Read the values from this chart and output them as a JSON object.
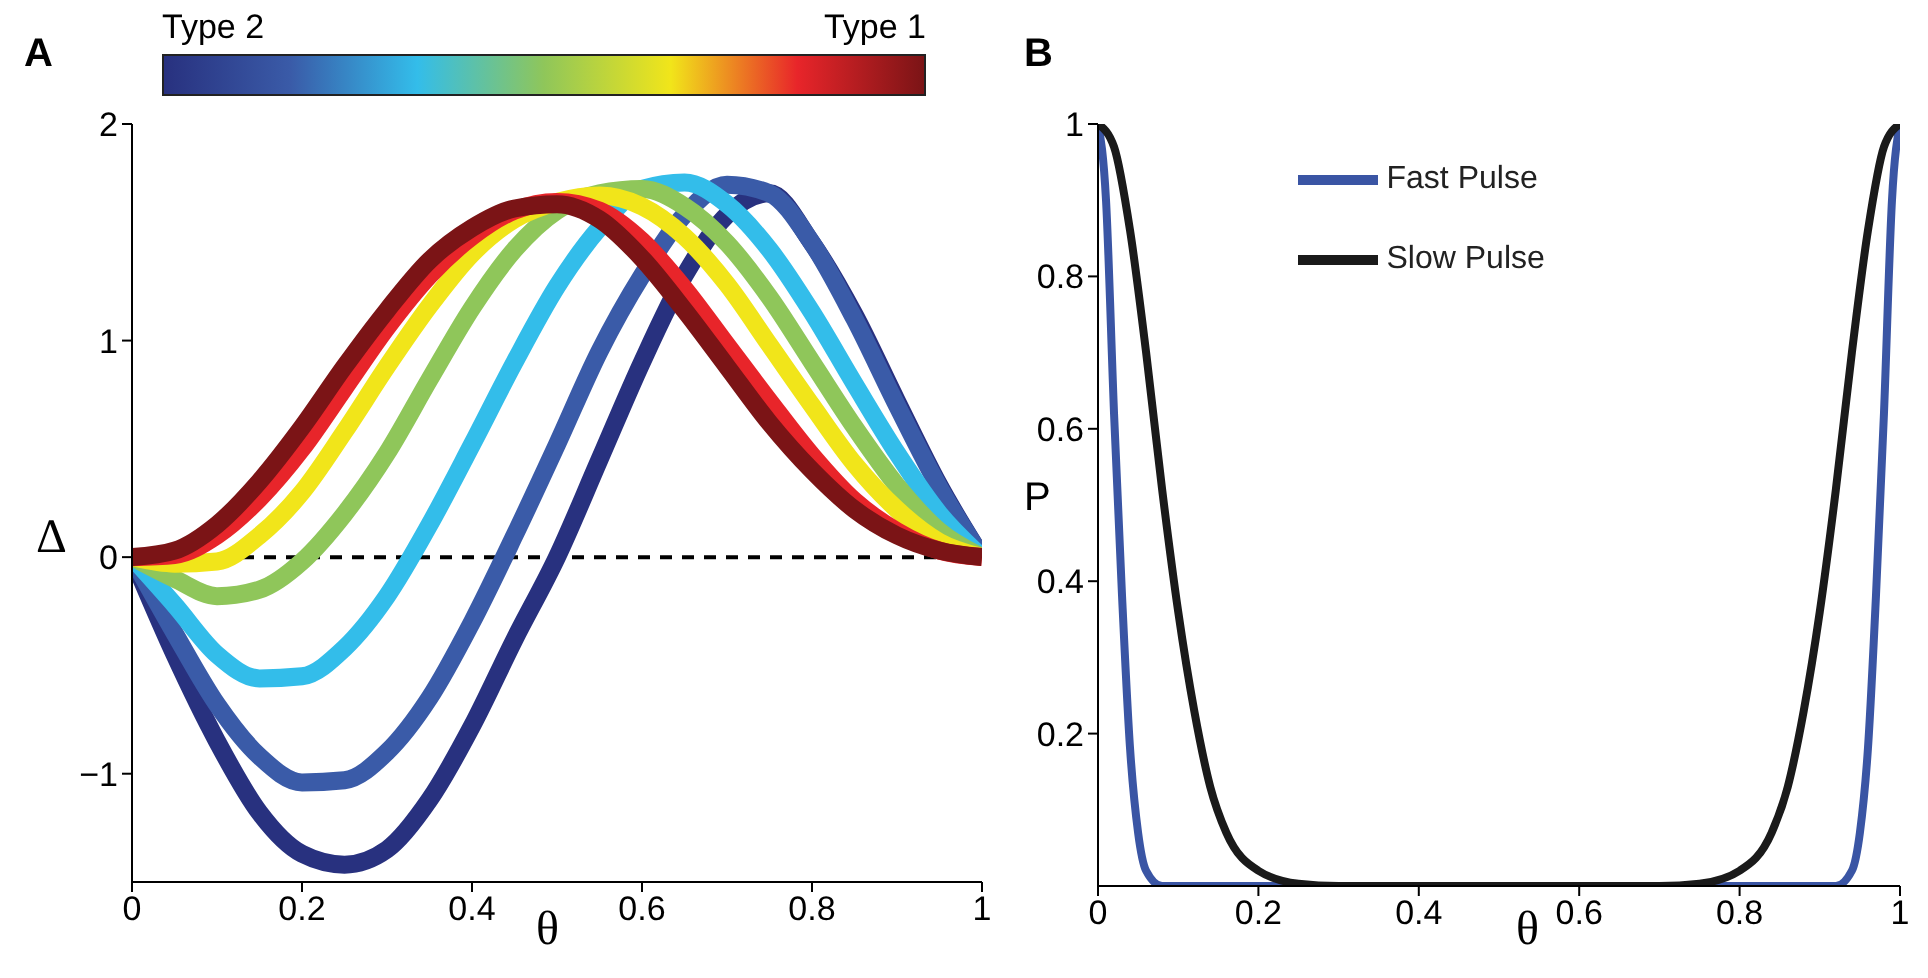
{
  "chart_data": [
    {
      "type": "line",
      "title": "A",
      "xlabel": "θ",
      "ylabel": "Δ",
      "annotations": [
        "Type 2",
        "Type 1"
      ],
      "x": [
        0,
        0.05,
        0.1,
        0.15,
        0.2,
        0.25,
        0.3,
        0.35,
        0.4,
        0.45,
        0.5,
        0.55,
        0.6,
        0.65,
        0.7,
        0.75,
        0.8,
        0.85,
        0.9,
        0.95,
        1
      ],
      "series": [
        {
          "color": "#28317f",
          "values": [
            0,
            -0.45,
            -0.85,
            -1.18,
            -1.37,
            -1.42,
            -1.35,
            -1.12,
            -0.78,
            -0.38,
            0,
            0.45,
            0.9,
            1.3,
            1.58,
            1.68,
            1.45,
            1.12,
            0.72,
            0.33,
            0
          ]
        },
        {
          "color": "#3a5ba8",
          "values": [
            0,
            -0.35,
            -0.68,
            -0.92,
            -1.04,
            -1.03,
            -0.9,
            -0.65,
            -0.3,
            0.1,
            0.52,
            0.95,
            1.3,
            1.58,
            1.72,
            1.68,
            1.45,
            1.1,
            0.7,
            0.32,
            0
          ]
        },
        {
          "color": "#33bdea",
          "values": [
            0,
            -0.22,
            -0.45,
            -0.56,
            -0.55,
            -0.42,
            -0.18,
            0.15,
            0.52,
            0.9,
            1.25,
            1.52,
            1.7,
            1.73,
            1.63,
            1.42,
            1.13,
            0.8,
            0.48,
            0.2,
            0
          ]
        },
        {
          "color": "#8fc65a",
          "values": [
            0,
            -0.1,
            -0.18,
            -0.15,
            -0.02,
            0.2,
            0.48,
            0.82,
            1.15,
            1.42,
            1.6,
            1.68,
            1.7,
            1.62,
            1.45,
            1.2,
            0.9,
            0.6,
            0.33,
            0.12,
            0
          ]
        },
        {
          "color": "#f1e51a",
          "values": [
            0,
            -0.03,
            -0.02,
            0.1,
            0.3,
            0.58,
            0.88,
            1.16,
            1.4,
            1.56,
            1.64,
            1.67,
            1.62,
            1.48,
            1.26,
            0.98,
            0.7,
            0.43,
            0.22,
            0.07,
            0
          ]
        },
        {
          "color": "#e8252a",
          "values": [
            0,
            0.01,
            0.1,
            0.27,
            0.5,
            0.78,
            1.06,
            1.3,
            1.48,
            1.6,
            1.64,
            1.6,
            1.46,
            1.24,
            0.98,
            0.72,
            0.47,
            0.26,
            0.12,
            0.03,
            0
          ]
        },
        {
          "color": "#7b1416",
          "values": [
            0,
            0.03,
            0.15,
            0.35,
            0.6,
            0.88,
            1.14,
            1.37,
            1.52,
            1.61,
            1.63,
            1.56,
            1.38,
            1.14,
            0.88,
            0.62,
            0.4,
            0.22,
            0.1,
            0.03,
            0
          ]
        }
      ],
      "xlim": [
        0,
        1
      ],
      "xticks": [
        0,
        0.2,
        0.4,
        0.6,
        0.8,
        1
      ],
      "ylim": [
        -1.5,
        2
      ],
      "yticks": [
        {
          "value": -1,
          "label": "−1"
        },
        0,
        1,
        2
      ],
      "ref_lines": [
        {
          "axis": "y",
          "value": 0,
          "color": "#000000",
          "line_style": "dashed"
        }
      ]
    },
    {
      "type": "line",
      "title": "B",
      "xlabel": "θ",
      "ylabel": "P",
      "legend": "top",
      "series": [
        {
          "name": "Fast Pulse",
          "color": "#3a55a4",
          "x": [
            0,
            0.01,
            0.02,
            0.03,
            0.04,
            0.05,
            0.06,
            0.08,
            0.1,
            0.5,
            0.9,
            0.92,
            0.94,
            0.95,
            0.96,
            0.97,
            0.98,
            0.99,
            1
          ],
          "values": [
            1,
            0.9,
            0.62,
            0.38,
            0.18,
            0.07,
            0.02,
            0,
            0,
            0,
            0,
            0,
            0.02,
            0.07,
            0.18,
            0.38,
            0.62,
            0.9,
            1
          ]
        },
        {
          "name": "Slow Pulse",
          "color": "#1a1a1a",
          "x": [
            0,
            0.02,
            0.04,
            0.06,
            0.08,
            0.1,
            0.12,
            0.14,
            0.16,
            0.2,
            0.25,
            0.3,
            0.7,
            0.75,
            0.8,
            0.84,
            0.86,
            0.88,
            0.9,
            0.92,
            0.94,
            0.96,
            0.98,
            1
          ],
          "values": [
            1,
            0.97,
            0.86,
            0.7,
            0.52,
            0.36,
            0.23,
            0.13,
            0.07,
            0.02,
            0.003,
            0,
            0,
            0.003,
            0.02,
            0.07,
            0.13,
            0.23,
            0.36,
            0.52,
            0.7,
            0.86,
            0.97,
            1
          ]
        }
      ],
      "xlim": [
        0,
        1
      ],
      "xticks": [
        0,
        0.2,
        0.4,
        0.6,
        0.8,
        1
      ],
      "ylim": [
        0,
        1
      ],
      "yticks": [
        0.2,
        0.4,
        0.6,
        0.8,
        1
      ]
    }
  ]
}
